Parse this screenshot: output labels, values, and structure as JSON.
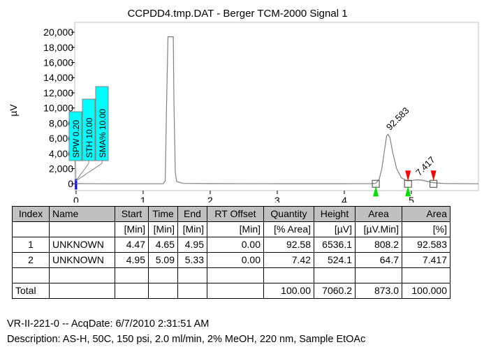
{
  "chart_data": {
    "type": "line",
    "title": "CCPDD4.tmp.DAT - Berger TCM-2000 Signal 1",
    "xlabel": "",
    "ylabel": "µV",
    "xlim": [
      -0.02,
      6.0
    ],
    "ylim": [
      -900,
      21300
    ],
    "x_ticks": [
      0,
      1,
      2,
      3,
      4,
      5
    ],
    "y_ticks": [
      "0",
      "2,000",
      "4,000",
      "6,000",
      "8,000",
      "10,000",
      "12,000",
      "14,000",
      "16,000",
      "18,000",
      "20,000"
    ],
    "y_tick_values": [
      0,
      2000,
      4000,
      6000,
      8000,
      10000,
      12000,
      14000,
      16000,
      18000,
      20000
    ],
    "series": [
      {
        "x": [
          0.0,
          0.5,
          1.0,
          1.3,
          1.33,
          1.35,
          1.37,
          1.45,
          1.46,
          1.48,
          1.5,
          1.6,
          2.0,
          3.0,
          4.0,
          4.4,
          4.47,
          4.52,
          4.56,
          4.6,
          4.63,
          4.65,
          4.68,
          4.72,
          4.78,
          4.85,
          4.92,
          4.95,
          5.02,
          5.09,
          5.16,
          5.25,
          5.33,
          5.5,
          6.0
        ],
        "y": [
          20,
          0,
          0,
          10,
          400,
          10500,
          19400,
          19400,
          10500,
          1500,
          300,
          50,
          20,
          10,
          10,
          20,
          50,
          600,
          2000,
          4500,
          6300,
          6536,
          6100,
          4200,
          2000,
          800,
          450,
          380,
          450,
          524,
          480,
          300,
          150,
          30,
          0
        ]
      }
    ],
    "peak_labels": [
      {
        "text": "92.583",
        "x": 4.65,
        "y": 6536
      },
      {
        "text": "7.417",
        "x": 5.09,
        "y": 524
      }
    ],
    "baseline_markers": [
      4.47,
      4.95,
      5.33
    ],
    "start_markers": [
      4.47,
      4.95
    ],
    "end_markers": [
      4.95,
      5.33
    ],
    "events": [
      {
        "label": "SPW 0.20",
        "x": 0.0
      },
      {
        "label": "STH 10.00",
        "x": 0.0
      },
      {
        "label": "SMA% 10.00",
        "x": 0.0
      }
    ]
  },
  "table": {
    "headers": [
      "Index",
      "Name",
      "Start",
      "Time",
      "End",
      "RT Offset",
      "Quantity",
      "Height",
      "Area",
      "Area"
    ],
    "units": [
      "",
      "",
      "[Min]",
      "[Min]",
      "[Min]",
      "[Min]",
      "[% Area]",
      "[µV]",
      "[µV.Min]",
      "[%]"
    ],
    "rows": [
      [
        "1",
        "UNKNOWN",
        "4.47",
        "4.65",
        "4.95",
        "0.00",
        "92.58",
        "6536.1",
        "808.2",
        "92.583"
      ],
      [
        "2",
        "UNKNOWN",
        "4.95",
        "5.09",
        "5.33",
        "0.00",
        "7.42",
        "524.1",
        "64.7",
        "7.417"
      ],
      [
        "",
        "",
        "",
        "",
        "",
        "",
        "",
        "",
        "",
        ""
      ]
    ],
    "total": [
      "Total",
      "",
      "",
      "",
      "",
      "",
      "100.00",
      "7060.2",
      "873.0",
      "100.000"
    ]
  },
  "footer": {
    "line1": "VR-II-221-0 -- AcqDate: 6/7/2010 2:31:51 AM",
    "line2": "Description: AS-H, 50C, 150 psi, 2.0 ml/min, 2% MeOH, 220 nm, Sample EtOAc"
  },
  "colors": {
    "trace": "#808080",
    "event_box": "#00ffff",
    "start_marker": "#00dd00",
    "end_marker": "#ff0000",
    "event_line": "#0000ff",
    "header_bg": "#c0c0c0"
  }
}
